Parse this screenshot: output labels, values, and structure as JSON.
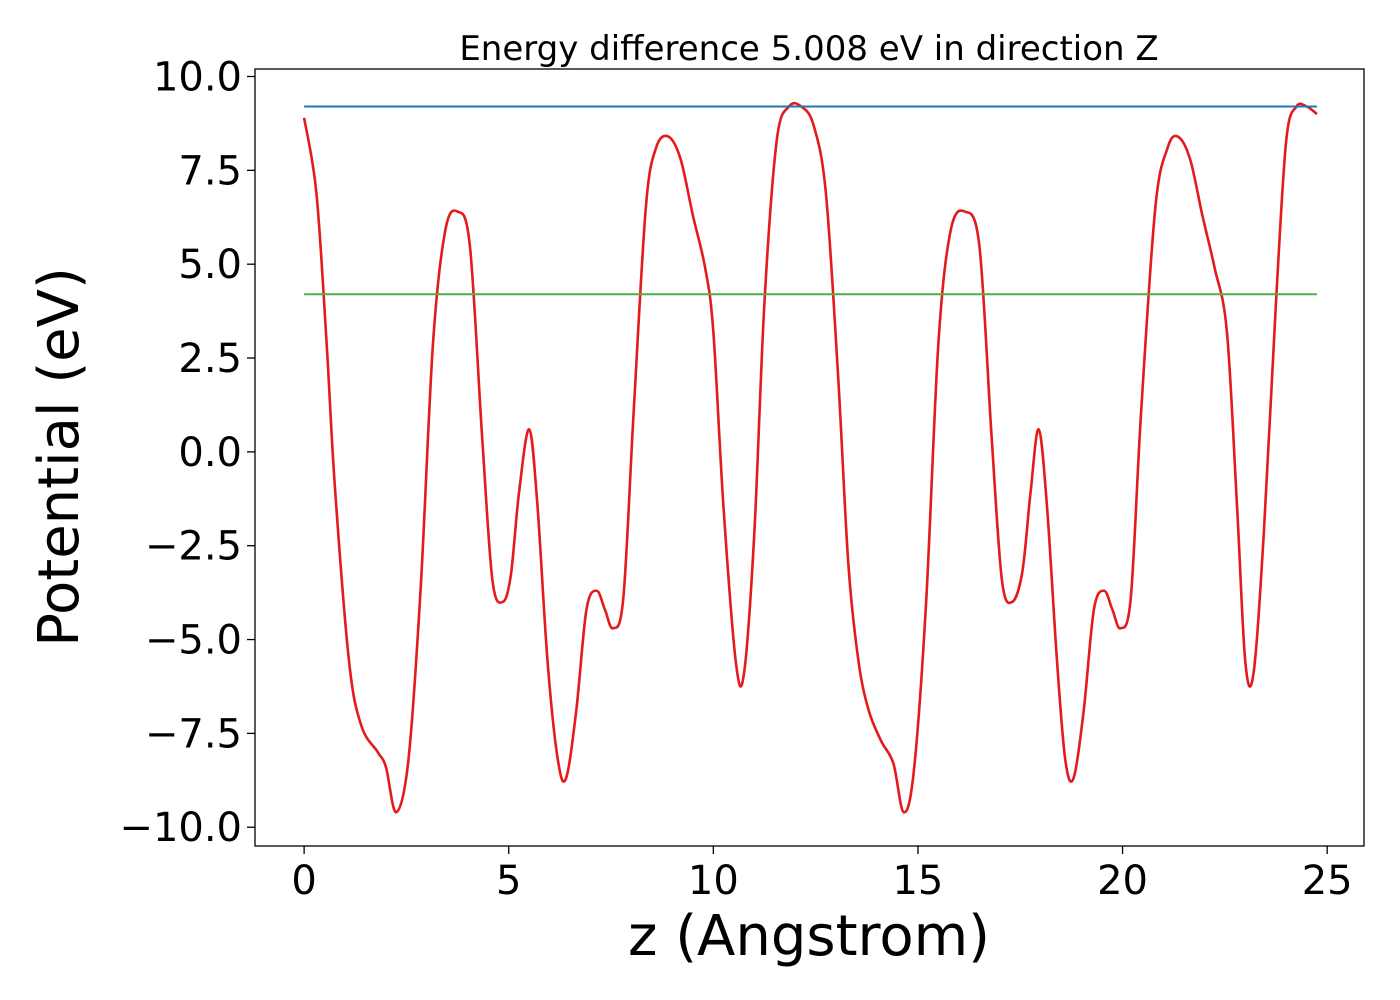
{
  "chart_data": {
    "type": "line",
    "title": "Energy difference 5.008 eV in direction Z",
    "xlabel": "z (Angstrom)",
    "ylabel": "Potential (eV)",
    "xlim": [
      -1.2,
      25.9
    ],
    "ylim": [
      -10.5,
      10.2
    ],
    "xticks": [
      0,
      5,
      10,
      15,
      20,
      25
    ],
    "xtick_labels": [
      "0",
      "5",
      "10",
      "15",
      "20",
      "25"
    ],
    "yticks": [
      10.0,
      7.5,
      5.0,
      2.5,
      0.0,
      -2.5,
      -5.0,
      -7.5,
      -10.0
    ],
    "ytick_labels": [
      "10.0",
      "7.5",
      "5.0",
      "2.5",
      "0.0",
      "−2.5",
      "−5.0",
      "−7.5",
      "−10.0"
    ],
    "grid": false,
    "series": [
      {
        "color": "#e41a1c",
        "x": [
          0,
          0.3,
          0.55,
          0.75,
          1.1,
          1.4,
          1.8,
          2.0,
          2.25,
          2.55,
          2.85,
          3.15,
          3.45,
          3.75,
          4.05,
          4.35,
          4.6,
          4.85,
          5.05,
          5.25,
          5.5,
          5.7,
          5.95,
          6.2,
          6.4,
          6.65,
          6.9,
          7.15,
          7.35,
          7.55,
          7.8,
          8.05,
          8.35,
          8.6,
          8.9,
          9.2,
          9.5,
          9.8,
          10.0,
          10.25,
          10.55,
          10.75,
          11.0,
          11.25,
          11.55,
          11.85,
          12.15,
          12.45,
          12.75,
          13.05,
          13.3,
          13.55,
          13.8,
          14.1,
          14.4,
          14.65,
          14.9,
          15.2,
          15.5,
          15.8,
          16.15,
          16.5,
          16.8,
          17.05,
          17.3,
          17.55,
          17.75,
          17.95,
          18.15,
          18.4,
          18.6,
          18.8,
          19.05,
          19.3,
          19.55,
          19.75,
          19.95,
          20.2,
          20.45,
          20.8,
          21.1,
          21.35,
          21.65,
          21.95,
          22.25,
          22.55,
          22.8,
          23.0,
          23.2,
          23.45,
          23.75,
          24.0,
          24.25,
          24.5,
          24.75
        ],
        "y": [
          8.9,
          6.9,
          2.9,
          -0.9,
          -5.6,
          -7.3,
          -8.0,
          -8.4,
          -9.6,
          -8.2,
          -3.6,
          2.9,
          5.9,
          6.4,
          5.5,
          0.4,
          -3.4,
          -4.0,
          -3.3,
          -1.1,
          0.6,
          -1.4,
          -5.6,
          -8.2,
          -8.7,
          -6.9,
          -4.2,
          -3.7,
          -4.2,
          -4.7,
          -3.9,
          1.0,
          6.5,
          8.1,
          8.4,
          7.8,
          6.3,
          4.9,
          3.2,
          -1.5,
          -5.6,
          -5.9,
          -2.2,
          4.0,
          8.3,
          9.2,
          9.2,
          8.7,
          6.9,
          2.0,
          -3.0,
          -5.6,
          -6.9,
          -7.7,
          -8.3,
          -9.6,
          -8.5,
          -4.0,
          2.9,
          5.9,
          6.4,
          5.5,
          0.4,
          -3.4,
          -4.0,
          -3.2,
          -1.1,
          0.6,
          -1.4,
          -5.6,
          -8.2,
          -8.7,
          -6.9,
          -4.2,
          -3.7,
          -4.2,
          -4.7,
          -3.9,
          1.0,
          6.5,
          8.1,
          8.4,
          7.8,
          6.3,
          4.9,
          3.2,
          -1.5,
          -5.6,
          -5.9,
          -2.2,
          4.0,
          8.3,
          9.2,
          9.2,
          9.0
        ]
      },
      {
        "color": "#1f77b4",
        "x": [
          0,
          24.75
        ],
        "y": [
          9.2,
          9.2
        ]
      },
      {
        "color": "#4daf4a",
        "x": [
          0,
          24.75
        ],
        "y": [
          4.2,
          4.2
        ]
      }
    ]
  }
}
